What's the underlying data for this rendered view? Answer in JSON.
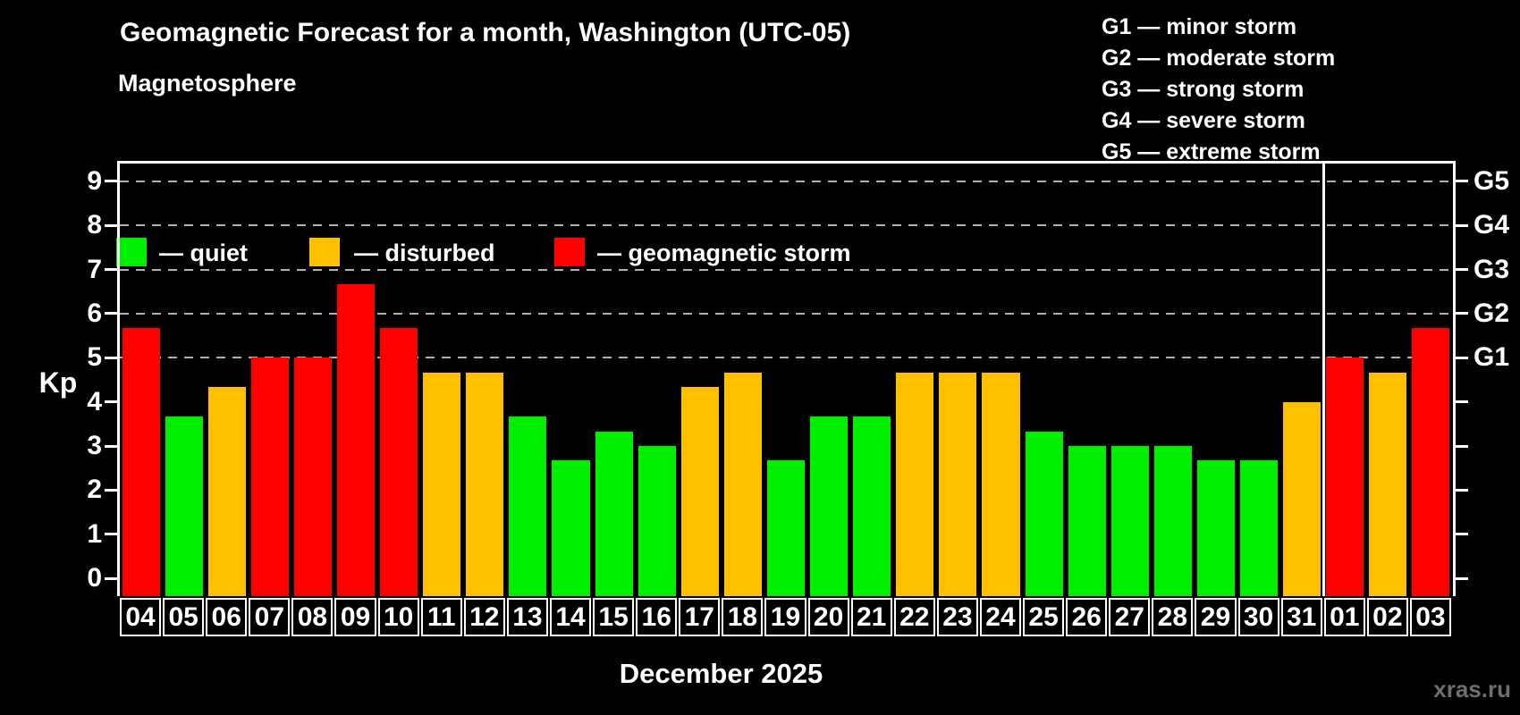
{
  "header": {
    "title": "Geomagnetic Forecast for a month, Washington (UTC-05)"
  },
  "legend": {
    "title": "Magnetosphere",
    "items": [
      {
        "key": "quiet",
        "label": "— quiet",
        "color": "#00ee00"
      },
      {
        "key": "disturbed",
        "label": "— disturbed",
        "color": "#ffc000"
      },
      {
        "key": "storm",
        "label": "— geomagnetic storm",
        "color": "#ff0000"
      }
    ]
  },
  "g_legend": [
    "G1 — minor storm",
    "G2 — moderate storm",
    "G3 — strong storm",
    "G4 — severe storm",
    "G5 — extreme storm"
  ],
  "y_axis": {
    "label": "Kp"
  },
  "x_axis": {
    "month_label": "December 2025"
  },
  "watermark": "xras.ru",
  "chart_data": {
    "type": "bar",
    "title": "Geomagnetic Forecast for a month, Washington (UTC-05)",
    "xlabel": "December 2025",
    "ylabel": "Kp",
    "ylim": [
      -0.4,
      9.4
    ],
    "yticks": [
      0,
      1,
      2,
      3,
      4,
      5,
      6,
      7,
      8,
      9
    ],
    "gridlines_at": [
      5,
      6,
      7,
      8,
      9
    ],
    "grid": "dashed, only at storm levels G1–G5",
    "right_axis": {
      "values": [
        5,
        6,
        7,
        8,
        9
      ],
      "labels": [
        "G1",
        "G2",
        "G3",
        "G4",
        "G5"
      ]
    },
    "month_separator_after_index": 27,
    "categories": [
      "04",
      "05",
      "06",
      "07",
      "08",
      "09",
      "10",
      "11",
      "12",
      "13",
      "14",
      "15",
      "16",
      "17",
      "18",
      "19",
      "20",
      "21",
      "22",
      "23",
      "24",
      "25",
      "26",
      "27",
      "28",
      "29",
      "30",
      "31",
      "01",
      "02",
      "03"
    ],
    "values": [
      5.67,
      3.67,
      4.33,
      5.0,
      5.0,
      6.67,
      5.67,
      4.67,
      4.67,
      3.67,
      2.67,
      3.33,
      3.0,
      4.33,
      4.67,
      2.67,
      3.67,
      3.67,
      4.67,
      4.67,
      4.67,
      3.33,
      3.0,
      3.0,
      3.0,
      2.67,
      2.67,
      4.0,
      5.0,
      4.67,
      5.67
    ],
    "states": [
      "storm",
      "quiet",
      "disturbed",
      "storm",
      "storm",
      "storm",
      "storm",
      "disturbed",
      "disturbed",
      "quiet",
      "quiet",
      "quiet",
      "quiet",
      "disturbed",
      "disturbed",
      "quiet",
      "quiet",
      "quiet",
      "disturbed",
      "disturbed",
      "disturbed",
      "quiet",
      "quiet",
      "quiet",
      "quiet",
      "quiet",
      "quiet",
      "disturbed",
      "storm",
      "disturbed",
      "storm"
    ],
    "colors": {
      "quiet": "#00ee00",
      "disturbed": "#ffc000",
      "storm": "#ff0000"
    },
    "legend_position": "top-left and top-right",
    "background": "#000000"
  }
}
